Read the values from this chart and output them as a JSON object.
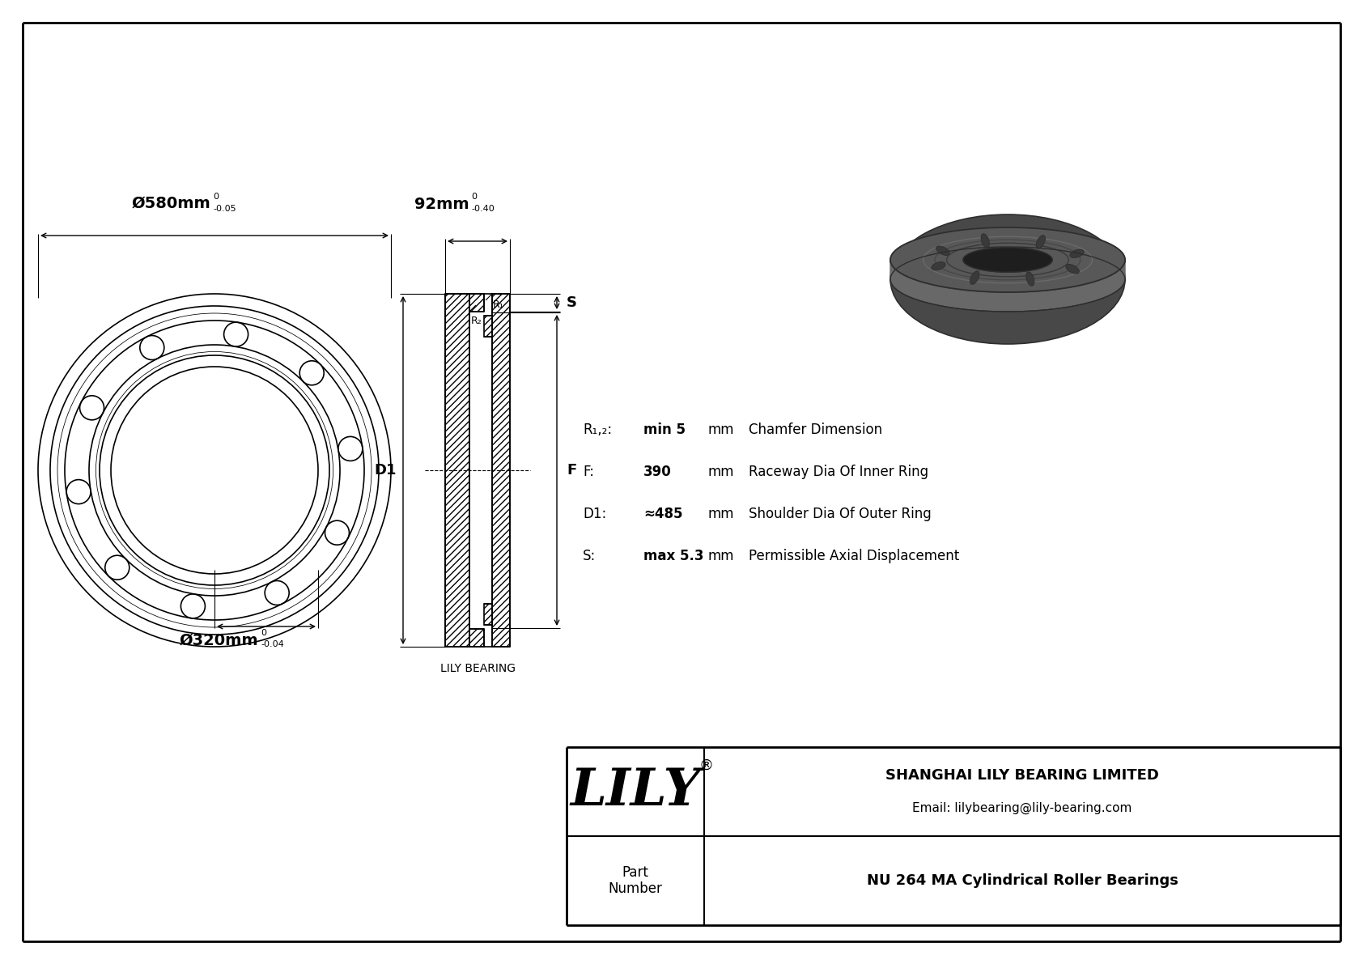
{
  "bg_color": "#ffffff",
  "line_color": "#000000",
  "title_company": "SHANGHAI LILY BEARING LIMITED",
  "title_email": "Email: lilybearing@lily-bearing.com",
  "brand": "LILY",
  "brand_reg": "®",
  "part_label": "Part\nNumber",
  "part_number": "NU 264 MA Cylindrical Roller Bearings",
  "dim_outer": "Ø580mm",
  "dim_outer_tol_top": "0",
  "dim_outer_tol_bot": "-0.05",
  "dim_inner": "Ø320mm",
  "dim_inner_tol_top": "0",
  "dim_inner_tol_bot": "-0.04",
  "dim_width": "92mm",
  "dim_width_tol_top": "0",
  "dim_width_tol_bot": "-0.40",
  "label_S": "S",
  "label_D1": "D1",
  "label_F": "F",
  "label_R2": "R₂",
  "label_R1": "R₁",
  "param_R12_label": "R₁,₂:",
  "param_R12_val": "min 5",
  "param_R12_unit": "mm",
  "param_R12_desc": "Chamfer Dimension",
  "param_F_label": "F:",
  "param_F_val": "390",
  "param_F_unit": "mm",
  "param_F_desc": "Raceway Dia Of Inner Ring",
  "param_D1_label": "D1:",
  "param_D1_val": "≈485",
  "param_D1_unit": "mm",
  "param_D1_desc": "Shoulder Dia Of Outer Ring",
  "param_S_label": "S:",
  "param_S_val": "max 5.3",
  "param_S_unit": "mm",
  "param_S_desc": "Permissible Axial Displacement",
  "lily_bearing_label": "LILY BEARING"
}
